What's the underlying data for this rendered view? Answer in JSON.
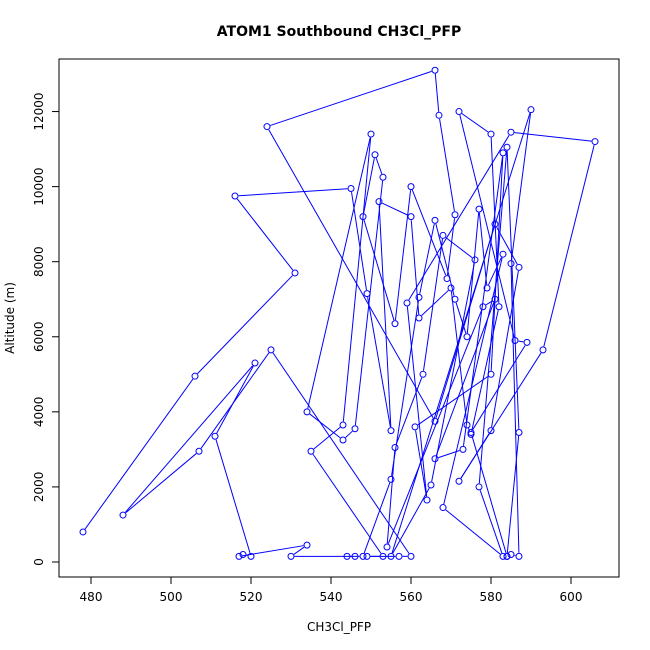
{
  "chart_data": {
    "type": "line",
    "title": "ATOM1 Southbound CH3Cl_PFP",
    "xlabel": "CH3Cl_PFP",
    "ylabel": "Altitude (m)",
    "xlim": [
      472,
      612
    ],
    "ylim": [
      -400,
      13400
    ],
    "x_ticks": [
      480,
      500,
      520,
      540,
      560,
      580,
      600
    ],
    "y_ticks": [
      0,
      2000,
      4000,
      6000,
      8000,
      10000,
      12000
    ],
    "grid": false,
    "legend": "none",
    "markers": "open-circle",
    "color": "#0000ff",
    "points": [
      [
        478,
        800
      ],
      [
        506,
        4950
      ],
      [
        531,
        7700
      ],
      [
        516,
        9750
      ],
      [
        545,
        9950
      ],
      [
        549,
        7150
      ],
      [
        555,
        3500
      ],
      [
        552,
        9600
      ],
      [
        560,
        9200
      ],
      [
        562,
        6500
      ],
      [
        570,
        7300
      ],
      [
        574,
        3650
      ],
      [
        575,
        3400
      ],
      [
        582,
        6800
      ],
      [
        580,
        11400
      ],
      [
        572,
        12000
      ],
      [
        586,
        5900
      ],
      [
        589,
        5850
      ],
      [
        575,
        3450
      ],
      [
        584,
        150
      ],
      [
        585,
        200
      ],
      [
        587,
        150
      ],
      [
        585,
        7950
      ],
      [
        590,
        12050
      ],
      [
        555,
        150
      ],
      [
        565,
        2050
      ],
      [
        576,
        8050
      ],
      [
        568,
        8700
      ],
      [
        563,
        5000
      ],
      [
        556,
        3050
      ],
      [
        554,
        400
      ],
      [
        578,
        6800
      ],
      [
        581,
        7000
      ],
      [
        566,
        2750
      ],
      [
        573,
        3000
      ],
      [
        583,
        10900
      ],
      [
        580,
        5000
      ],
      [
        561,
        3600
      ],
      [
        564,
        1650
      ],
      [
        559,
        6900
      ],
      [
        585,
        11450
      ],
      [
        606,
        11200
      ],
      [
        593,
        5650
      ],
      [
        572,
        2150
      ],
      [
        580,
        3500
      ],
      [
        587,
        7850
      ],
      [
        581,
        9000
      ],
      [
        566,
        3750
      ],
      [
        524,
        11600
      ],
      [
        566,
        13100
      ],
      [
        567,
        11900
      ],
      [
        571,
        9250
      ],
      [
        569,
        7550
      ],
      [
        560,
        10000
      ],
      [
        556,
        6350
      ],
      [
        548,
        9200
      ],
      [
        551,
        10850
      ],
      [
        553,
        10250
      ],
      [
        546,
        3550
      ],
      [
        543,
        3250
      ],
      [
        534,
        4000
      ],
      [
        550,
        11400
      ],
      [
        543,
        3650
      ],
      [
        535,
        2950
      ],
      [
        553,
        150
      ],
      [
        549,
        150
      ],
      [
        557,
        150
      ],
      [
        560,
        150
      ],
      [
        525,
        5650
      ],
      [
        507,
        2950
      ],
      [
        488,
        1250
      ],
      [
        521,
        5300
      ],
      [
        511,
        3350
      ],
      [
        520,
        150
      ],
      [
        518,
        200
      ],
      [
        517,
        150
      ],
      [
        534,
        450
      ],
      [
        530,
        150
      ],
      [
        546,
        150
      ],
      [
        544,
        150
      ],
      [
        548,
        150
      ],
      [
        555,
        2200
      ],
      [
        562,
        7050
      ],
      [
        566,
        9100
      ],
      [
        571,
        7000
      ],
      [
        574,
        6000
      ],
      [
        577,
        9400
      ],
      [
        579,
        7300
      ],
      [
        583,
        8200
      ],
      [
        568,
        1450
      ],
      [
        583,
        150
      ],
      [
        577,
        2000
      ],
      [
        584,
        11050
      ],
      [
        587,
        3450
      ],
      [
        584,
        150
      ]
    ]
  }
}
